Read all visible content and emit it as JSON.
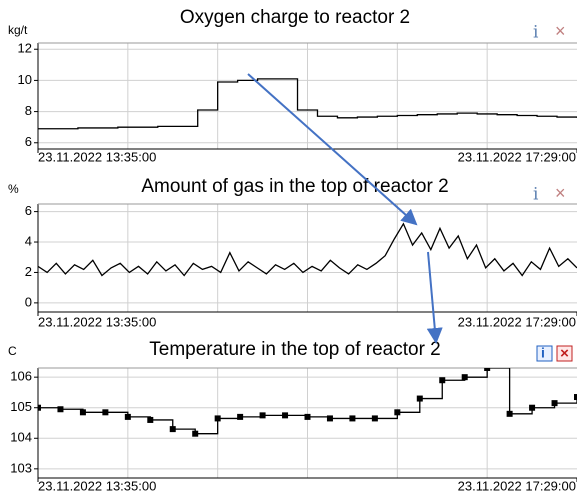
{
  "chart_data": [
    {
      "type": "line",
      "title": "Oxygen charge to reactor 2",
      "ylabel": "kg/t",
      "step": true,
      "markers": false,
      "color": "#000000",
      "grid": true,
      "xlim": [
        0,
        27
      ],
      "xticks": [
        {
          "value": 0,
          "label": "23.11.2022 13:35:00"
        },
        {
          "value": 27,
          "label": "23.11.2022 17:29:00"
        }
      ],
      "ylim": [
        5.6,
        12.4
      ],
      "yticks": [
        6,
        8,
        10,
        12
      ],
      "values": [
        6.9,
        6.9,
        6.95,
        6.95,
        7.0,
        7.0,
        7.05,
        7.05,
        8.1,
        9.9,
        10.0,
        10.1,
        10.1,
        8.1,
        7.7,
        7.6,
        7.65,
        7.7,
        7.75,
        7.8,
        7.85,
        7.9,
        7.85,
        7.8,
        7.75,
        7.7,
        7.65,
        7.6
      ]
    },
    {
      "type": "line",
      "title": "Amount of gas in the top of reactor 2",
      "ylabel": "%",
      "step": false,
      "markers": false,
      "color": "#000000",
      "grid": true,
      "xlim": [
        0,
        59
      ],
      "xticks": [
        {
          "value": 0,
          "label": "23.11.2022 13:35:00"
        },
        {
          "value": 59,
          "label": "23.11.2022 17:29:00"
        }
      ],
      "ylim": [
        -0.6,
        6.5
      ],
      "yticks": [
        0,
        2,
        4,
        6
      ],
      "values": [
        2.4,
        2.0,
        2.6,
        1.9,
        2.5,
        2.2,
        2.8,
        1.8,
        2.3,
        2.6,
        2.0,
        2.4,
        1.9,
        2.7,
        2.1,
        2.5,
        1.8,
        2.6,
        2.2,
        2.4,
        2.0,
        3.3,
        2.1,
        2.7,
        2.3,
        1.9,
        2.5,
        2.2,
        2.6,
        2.0,
        2.4,
        2.1,
        2.8,
        2.3,
        1.9,
        2.5,
        2.2,
        2.6,
        3.1,
        4.2,
        5.2,
        3.8,
        4.6,
        3.5,
        4.9,
        3.6,
        4.4,
        2.9,
        3.8,
        2.3,
        2.9,
        2.1,
        2.6,
        1.8,
        2.7,
        2.2,
        3.6,
        2.4,
        2.9,
        2.3
      ]
    },
    {
      "type": "line",
      "title": "Temperature in the top of reactor 2",
      "ylabel": "C",
      "step": true,
      "markers": true,
      "color": "#000000",
      "grid": true,
      "xlim": [
        0,
        24
      ],
      "xticks": [
        {
          "value": 0,
          "label": "23.11.2022 13:35:00"
        },
        {
          "value": 24,
          "label": "23.11.2022 17:29:00"
        }
      ],
      "ylim": [
        102.7,
        106.3
      ],
      "yticks": [
        103,
        104,
        105,
        106
      ],
      "values": [
        105.0,
        104.95,
        104.85,
        104.85,
        104.7,
        104.6,
        104.3,
        104.15,
        104.65,
        104.7,
        104.75,
        104.75,
        104.7,
        104.65,
        104.65,
        104.65,
        104.85,
        105.3,
        105.9,
        106.0,
        106.3,
        104.8,
        105.0,
        105.15,
        105.35
      ]
    }
  ]
}
